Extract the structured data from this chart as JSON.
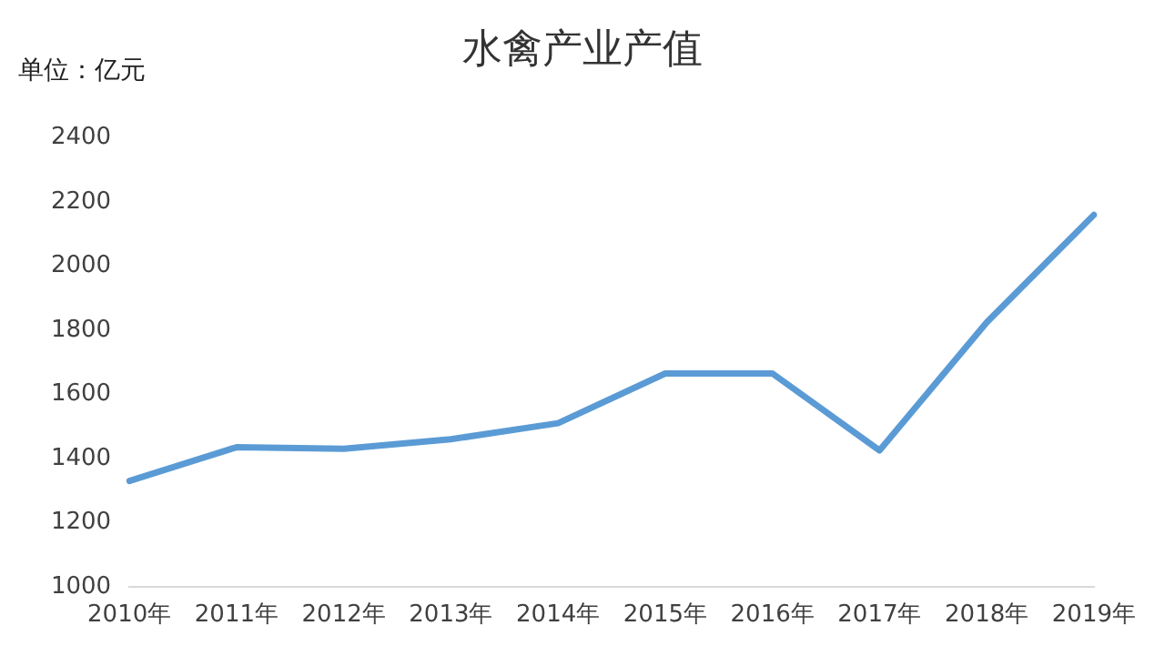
{
  "chart_data": {
    "type": "line",
    "title": "水禽产业产值",
    "ylabel": "单位：亿元",
    "categories": [
      "2010年",
      "2011年",
      "2012年",
      "2013年",
      "2014年",
      "2015年",
      "2016年",
      "2017年",
      "2018年",
      "2019年"
    ],
    "series": [
      {
        "color": "#5b9bd5",
        "values": [
          1330,
          1435,
          1430,
          1460,
          1510,
          1665,
          1665,
          1425,
          1825,
          2160
        ]
      }
    ],
    "ylim": [
      1000,
      2400
    ],
    "yticks": [
      1000,
      1200,
      1400,
      1600,
      1800,
      2000,
      2200,
      2400
    ],
    "grid": false,
    "legend": false,
    "marker": "none",
    "line_style": "solid"
  }
}
